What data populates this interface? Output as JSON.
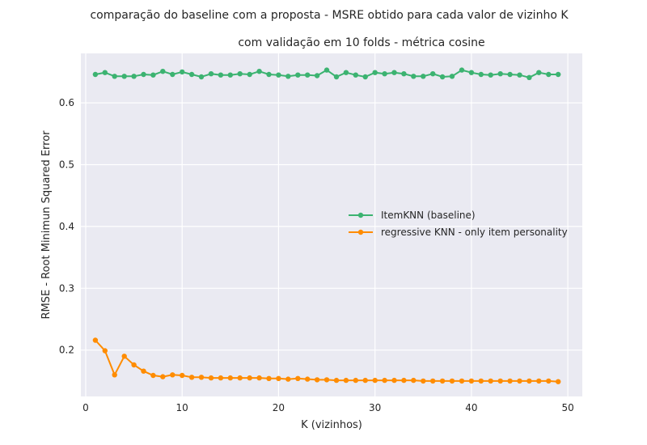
{
  "figure": {
    "suptitle": "comparação do baseline com a proposta - MSRE obtido para cada valor de vizinho K"
  },
  "chart_data": {
    "type": "line",
    "title": "com validação em 10 folds - métrica cosine",
    "xlabel": "K (vizinhos)",
    "ylabel": "RMSE - Root Minimun Squared Error",
    "xlim": [
      -0.5,
      51.5
    ],
    "ylim": [
      0.125,
      0.68
    ],
    "xticks": [
      0,
      10,
      20,
      30,
      40,
      50
    ],
    "yticks": [
      0.2,
      0.3,
      0.4,
      0.5,
      0.6
    ],
    "grid": true,
    "legend_position": "center-right",
    "x": [
      1,
      2,
      3,
      4,
      5,
      6,
      7,
      8,
      9,
      10,
      11,
      12,
      13,
      14,
      15,
      16,
      17,
      18,
      19,
      20,
      21,
      22,
      23,
      24,
      25,
      26,
      27,
      28,
      29,
      30,
      31,
      32,
      33,
      34,
      35,
      36,
      37,
      38,
      39,
      40,
      41,
      42,
      43,
      44,
      45,
      46,
      47,
      48,
      49
    ],
    "series": [
      {
        "name": "ItemKNN (baseline)",
        "color": "#3cb371",
        "values": [
          0.646,
          0.649,
          0.643,
          0.643,
          0.643,
          0.646,
          0.645,
          0.651,
          0.646,
          0.65,
          0.646,
          0.642,
          0.647,
          0.645,
          0.645,
          0.647,
          0.646,
          0.651,
          0.646,
          0.645,
          0.643,
          0.645,
          0.645,
          0.644,
          0.653,
          0.642,
          0.649,
          0.645,
          0.642,
          0.649,
          0.647,
          0.649,
          0.647,
          0.643,
          0.643,
          0.647,
          0.642,
          0.643,
          0.653,
          0.649,
          0.646,
          0.645,
          0.647,
          0.646,
          0.645,
          0.641,
          0.649,
          0.646,
          0.646
        ]
      },
      {
        "name": "regressive KNN - only item personality",
        "color": "#ff8c00",
        "values": [
          0.216,
          0.199,
          0.16,
          0.19,
          0.176,
          0.166,
          0.159,
          0.157,
          0.16,
          0.159,
          0.156,
          0.156,
          0.155,
          0.155,
          0.155,
          0.155,
          0.155,
          0.155,
          0.154,
          0.154,
          0.153,
          0.154,
          0.153,
          0.152,
          0.152,
          0.151,
          0.151,
          0.151,
          0.151,
          0.151,
          0.151,
          0.151,
          0.151,
          0.151,
          0.15,
          0.15,
          0.15,
          0.15,
          0.15,
          0.15,
          0.15,
          0.15,
          0.15,
          0.15,
          0.15,
          0.15,
          0.15,
          0.15,
          0.149
        ]
      }
    ]
  }
}
